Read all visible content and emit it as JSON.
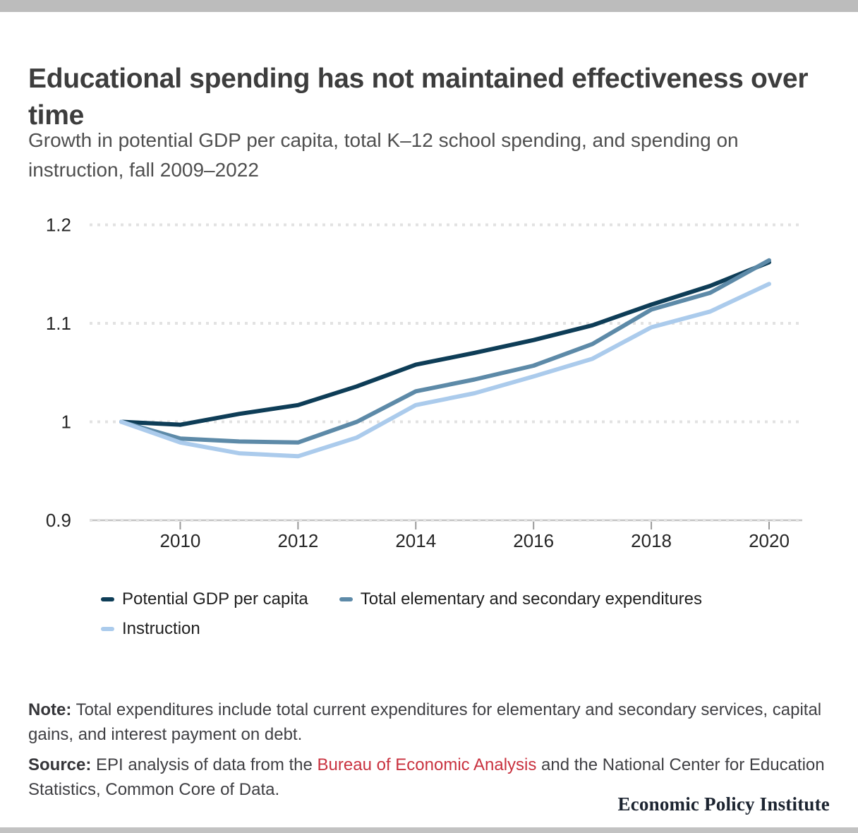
{
  "header": {
    "title": "Educational spending has not maintained effectiveness over time",
    "subtitle": "Growth in potential GDP per capita, total K–12 school spending, and spending on instruction, fall 2009–2022"
  },
  "chart_data": {
    "type": "line",
    "x": [
      2009,
      2010,
      2011,
      2012,
      2013,
      2014,
      2015,
      2016,
      2017,
      2018,
      2019,
      2020
    ],
    "series": [
      {
        "name": "Potential GDP per capita",
        "color": "#0e3d57",
        "values": [
          1.0,
          0.997,
          1.008,
          1.017,
          1.036,
          1.058,
          1.07,
          1.083,
          1.098,
          1.119,
          1.138,
          1.162
        ]
      },
      {
        "name": "Total elementary and secondary expenditures",
        "color": "#5d8aa8",
        "values": [
          1.0,
          0.983,
          0.98,
          0.979,
          1.0,
          1.031,
          1.043,
          1.057,
          1.079,
          1.114,
          1.131,
          1.164
        ]
      },
      {
        "name": "Instruction",
        "color": "#abcbec",
        "values": [
          1.0,
          0.979,
          0.968,
          0.965,
          0.984,
          1.017,
          1.029,
          1.046,
          1.064,
          1.096,
          1.112,
          1.14
        ]
      }
    ],
    "x_ticks": [
      {
        "label": "2010",
        "value": 2010
      },
      {
        "label": "2012",
        "value": 2012
      },
      {
        "label": "2014",
        "value": 2014
      },
      {
        "label": "2016",
        "value": 2016
      },
      {
        "label": "2018",
        "value": 2018
      },
      {
        "label": "2020",
        "value": 2020
      }
    ],
    "y_ticks": [
      {
        "label": "1.2",
        "value": 1.2
      },
      {
        "label": "1.1",
        "value": 1.1
      },
      {
        "label": "1",
        "value": 1.0
      },
      {
        "label": "0.9",
        "value": 0.9
      }
    ],
    "ylim": [
      0.9,
      1.2
    ],
    "xlim": [
      2009,
      2020
    ],
    "grid": "horizontal-dotted",
    "legend_position": "bottom-left",
    "gridline_color": "#e2e2e2",
    "axis_line_color": "#c4c4c4",
    "tick_color": "#9a9a9a",
    "axis_label_color": "#262626"
  },
  "note": {
    "label": "Note:",
    "text": "Total expenditures include total current expenditures for elementary and secondary services, capital gains, and interest payment on debt."
  },
  "source": {
    "label": "Source:",
    "before_link": "EPI analysis of data from the ",
    "link_text": "Bureau of Economic Analysis",
    "after_link": " and the National Center for Education Statistics, Common Core of Data.",
    "link_color": "#c9323f"
  },
  "footer": {
    "brand": "Economic Policy Institute"
  }
}
